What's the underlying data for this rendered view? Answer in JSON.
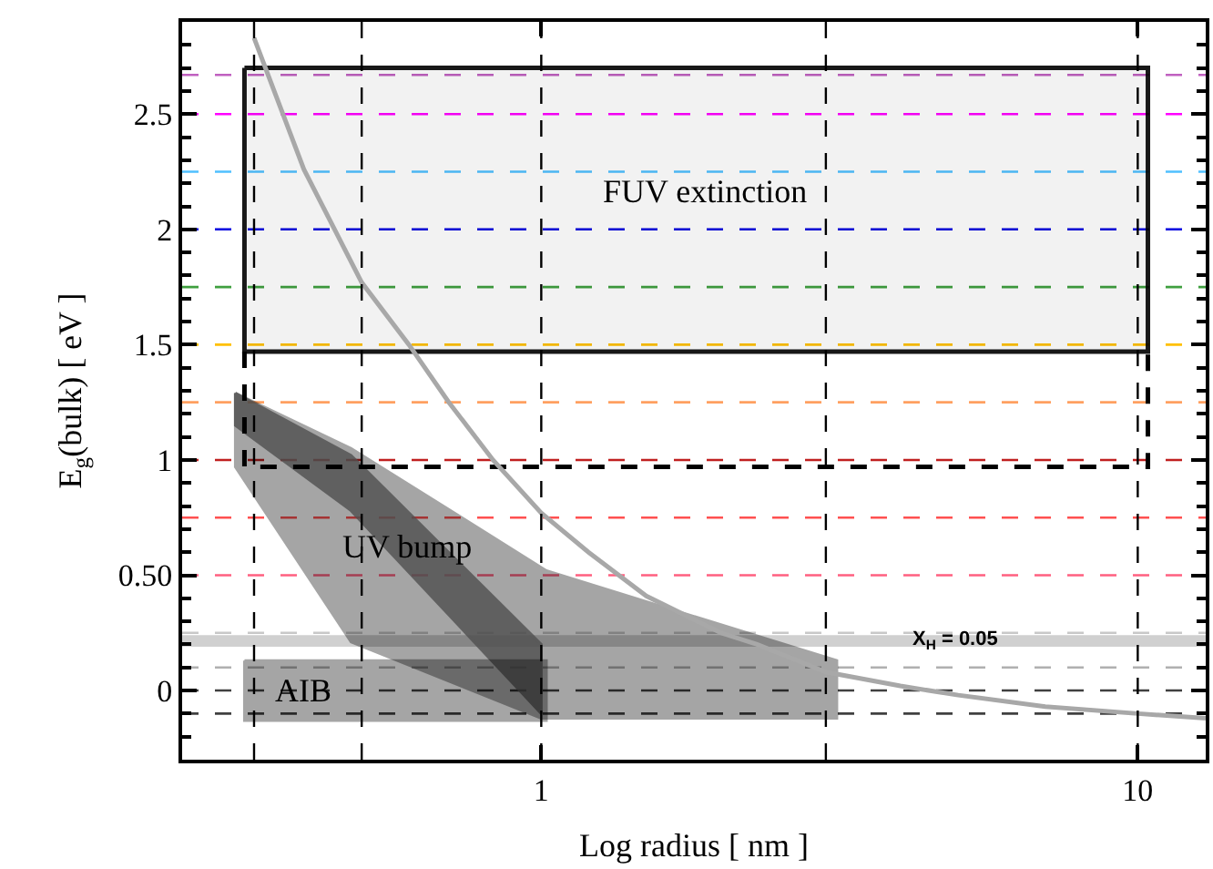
{
  "chart_data": {
    "type": "line",
    "xlabel": "Log radius [ nm ]",
    "ylabel": "E$_{g}$(bulk) [ eV ]",
    "log": "x",
    "xlim": [
      0.25,
      13
    ],
    "xticks": [
      1,
      10
    ],
    "ylim": [
      -0.3,
      2.9
    ],
    "yticks": [
      0,
      {
        "value": 0.5,
        "label": "0.50"
      },
      1,
      1.5,
      2,
      2.5
    ],
    "grid": false,
    "series": [
      {
        "type": "area",
        "color": "#000000",
        "x": [
          0.307,
          0.307,
          0.48,
          1.0,
          3.13,
          3.13,
          1.02,
          0.48,
          0.307
        ],
        "values": [
          1.29,
          0.97,
          0.21,
          -0.12,
          -0.12,
          0.13,
          0.52,
          1.05,
          1.29
        ]
      },
      {
        "type": "area",
        "color": "#505050",
        "x": [
          0.307,
          0.48,
          1.0,
          1.0,
          0.48,
          0.307,
          0.307
        ],
        "values": [
          1.29,
          1.02,
          0.2,
          -0.1,
          0.78,
          1.15,
          1.29
        ]
      },
      {
        "type": "area",
        "color": "#000000",
        "x": [
          0.318,
          1.02,
          1.02,
          0.318,
          0.318
        ],
        "values": [
          0.13,
          0.13,
          -0.13,
          -0.13,
          0.13
        ]
      },
      {
        "type": "area",
        "color": "#000000",
        "line_style": "solid",
        "x": [
          0.318,
          10.4,
          10.4,
          0.318,
          0.318
        ],
        "values": [
          2.7,
          2.7,
          1.47,
          1.47,
          2.7
        ]
      },
      {
        "color": "#000000",
        "line_style": "dashed",
        "x": [
          0.318,
          0.318,
          10.4,
          10.4
        ],
        "values": [
          1.47,
          0.97,
          0.97,
          1.47
        ]
      },
      {
        "color": "#a8a8a8",
        "line_style": "solid",
        "x": [
          0.33,
          0.4,
          0.5,
          0.6,
          0.7,
          0.83,
          1,
          1.2,
          1.5,
          2,
          2.3,
          3,
          4,
          5,
          7,
          10,
          13
        ],
        "values": [
          2.83,
          2.26,
          1.77,
          1.5,
          1.25,
          1.0,
          0.77,
          0.6,
          0.41,
          0.25,
          0.2,
          0.08,
          0.02,
          -0.02,
          -0.07,
          -0.1,
          -0.12
        ]
      }
    ],
    "ref_lines": [
      {
        "axis": "y",
        "value": 2.67,
        "color": "#c060c0",
        "line_style": "dashed"
      },
      {
        "axis": "y",
        "value": 2.5,
        "color": "#ff00ff",
        "line_style": "dashed"
      },
      {
        "axis": "y",
        "value": 2.25,
        "color": "#50c0ff",
        "line_style": "dashed"
      },
      {
        "axis": "y",
        "value": 2.0,
        "color": "#0000e0",
        "line_style": "dashed"
      },
      {
        "axis": "y",
        "value": 1.75,
        "color": "#40a040",
        "line_style": "dashed"
      },
      {
        "axis": "y",
        "value": 1.5,
        "color": "#ffc000",
        "line_style": "dashed"
      },
      {
        "axis": "y",
        "value": 1.25,
        "color": "#ffa060",
        "line_style": "dashed"
      },
      {
        "axis": "y",
        "value": 1.0,
        "color": "#c02020",
        "line_style": "dashed"
      },
      {
        "axis": "y",
        "value": 0.75,
        "color": "#ff5050",
        "line_style": "dashed"
      },
      {
        "axis": "y",
        "value": 0.5,
        "color": "#ff6080",
        "line_style": "dashed"
      },
      {
        "axis": "y",
        "value": 0.25,
        "color": "#c8c8c8",
        "line_style": "dashed"
      },
      {
        "axis": "y",
        "value": 0.1,
        "color": "#b0b0b0",
        "line_style": "dashed"
      },
      {
        "axis": "y",
        "value": 0,
        "color": "#404040",
        "line_style": "dashed"
      },
      {
        "axis": "y",
        "value": -0.1,
        "color": "#404040",
        "line_style": "dashed"
      },
      {
        "axis": "x",
        "value": 0.33,
        "color": "#000000",
        "line_style": "dashed"
      },
      {
        "axis": "x",
        "value": 0.5,
        "color": "#000000",
        "line_style": "dashed"
      },
      {
        "axis": "x",
        "value": 1,
        "color": "#000000",
        "line_style": "dashed"
      },
      {
        "axis": "x",
        "value": 3,
        "color": "#000000",
        "line_style": "dashed"
      },
      {
        "axis": "x",
        "value": 10,
        "color": "#000000",
        "line_style": "dashed"
      }
    ],
    "bands": [
      {
        "axis": "y",
        "from": 0.19,
        "to": 0.24,
        "label": "X$_{H}$ = 0.05",
        "color": "#d0d0d0"
      }
    ],
    "annotations": [
      "FUV extinction",
      "UV bump",
      {
        "text": "AIB",
        "x": 0.4,
        "y": 0.0
      }
    ]
  }
}
